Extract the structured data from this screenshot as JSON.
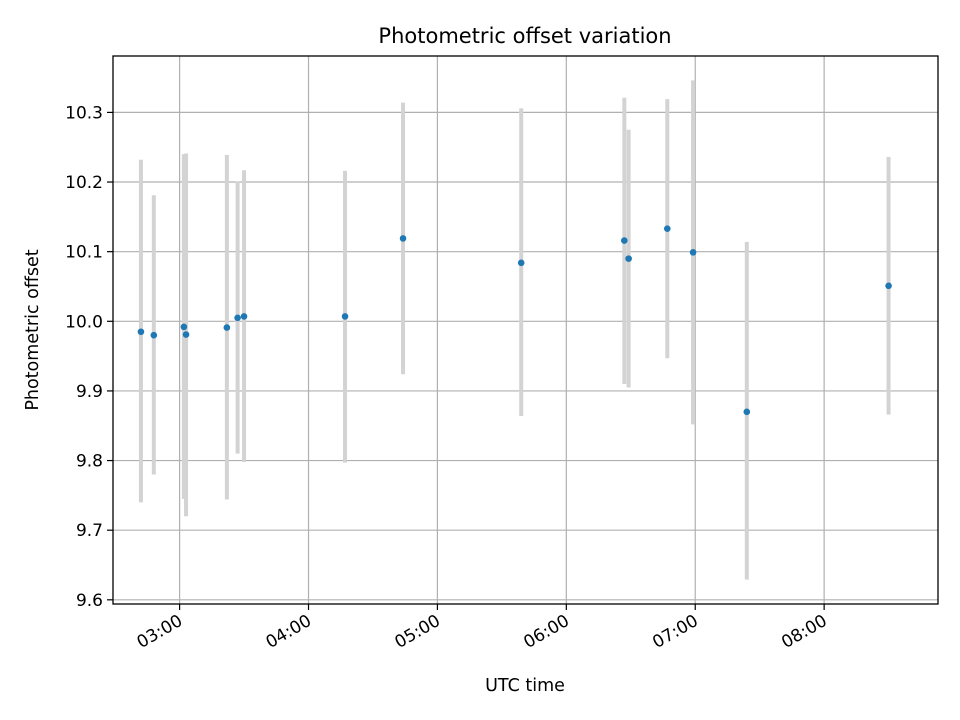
{
  "chart_data": {
    "type": "scatter",
    "title": "Photometric offset variation",
    "xlabel": "UTC time",
    "ylabel": "Photometric offset",
    "x_tick_labels": [
      "03:00",
      "04:00",
      "05:00",
      "06:00",
      "07:00",
      "08:00"
    ],
    "y_tick_labels": [
      "9.6",
      "9.7",
      "9.8",
      "9.9",
      "10.0",
      "10.1",
      "10.2",
      "10.3"
    ],
    "xlim": [
      "02:29",
      "08:53"
    ],
    "ylim": [
      9.594,
      10.381
    ],
    "grid": true,
    "errorbar_color": "#d3d3d3",
    "marker_color": "#1f77b4",
    "points": [
      {
        "x": "02:42",
        "y": 9.985,
        "yerr_low": 9.74,
        "yerr_high": 10.232
      },
      {
        "x": "02:48",
        "y": 9.98,
        "yerr_low": 9.78,
        "yerr_high": 10.181
      },
      {
        "x": "03:02",
        "y": 9.992,
        "yerr_low": 9.745,
        "yerr_high": 10.24
      },
      {
        "x": "03:03",
        "y": 9.981,
        "yerr_low": 9.72,
        "yerr_high": 10.241
      },
      {
        "x": "03:22",
        "y": 9.991,
        "yerr_low": 9.744,
        "yerr_high": 10.239
      },
      {
        "x": "03:27",
        "y": 10.005,
        "yerr_low": 9.81,
        "yerr_high": 10.201
      },
      {
        "x": "03:30",
        "y": 10.007,
        "yerr_low": 9.798,
        "yerr_high": 10.217
      },
      {
        "x": "04:17",
        "y": 10.007,
        "yerr_low": 9.797,
        "yerr_high": 10.216
      },
      {
        "x": "04:44",
        "y": 10.119,
        "yerr_low": 9.924,
        "yerr_high": 10.314
      },
      {
        "x": "05:39",
        "y": 10.084,
        "yerr_low": 9.864,
        "yerr_high": 10.306
      },
      {
        "x": "06:27",
        "y": 10.116,
        "yerr_low": 9.91,
        "yerr_high": 10.321
      },
      {
        "x": "06:29",
        "y": 10.09,
        "yerr_low": 9.905,
        "yerr_high": 10.275
      },
      {
        "x": "06:47",
        "y": 10.133,
        "yerr_low": 9.947,
        "yerr_high": 10.319
      },
      {
        "x": "06:59",
        "y": 10.099,
        "yerr_low": 9.852,
        "yerr_high": 10.346
      },
      {
        "x": "07:24",
        "y": 9.87,
        "yerr_low": 9.629,
        "yerr_high": 10.114
      },
      {
        "x": "08:30",
        "y": 10.051,
        "yerr_low": 9.866,
        "yerr_high": 10.236
      }
    ]
  }
}
